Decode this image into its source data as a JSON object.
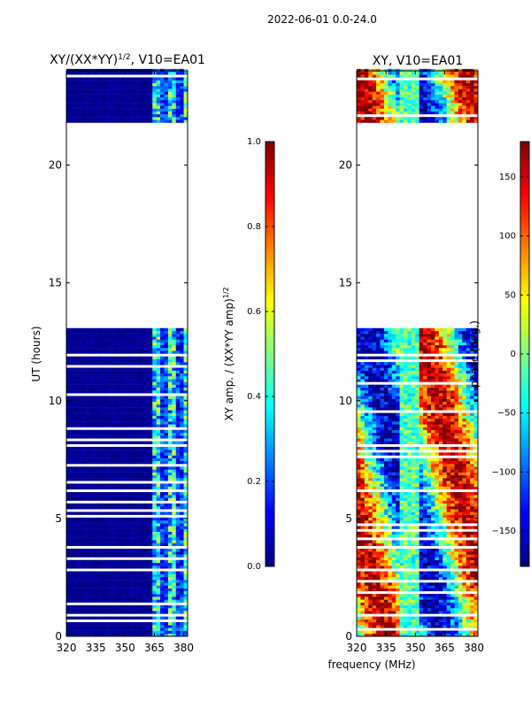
{
  "figure": {
    "suptitle": "2022-06-01 0.0-24.0",
    "xlabel_shared": "frequency (MHz)"
  },
  "chart_data": [
    {
      "type": "heatmap",
      "title_main": "XY/(XX*YY)",
      "title_sup": "1/2",
      "title_tail": ", V10=EA01",
      "xlabel": "frequency (MHz)",
      "ylabel": "UT (hours)",
      "x_ticks": [
        320,
        335,
        350,
        365,
        380
      ],
      "y_ticks": [
        0,
        5,
        10,
        15,
        20
      ],
      "xlim": [
        320,
        382
      ],
      "ylim": [
        0,
        24
      ],
      "data_hours": [
        [
          0,
          13
        ],
        [
          21.8,
          24
        ]
      ],
      "colorbar": {
        "label_main": "XY amp. / (XX*YY amp)",
        "label_sup": "1/2",
        "range": [
          0.0,
          1.0
        ],
        "ticks": [
          0.0,
          0.2,
          0.4,
          0.6,
          0.8,
          1.0
        ],
        "tick_labels": [
          "0.0",
          "0.2",
          "0.4",
          "0.6",
          "0.8",
          "1.0"
        ],
        "colormap": "jet"
      }
    },
    {
      "type": "heatmap",
      "title": "XY, V10=EA01",
      "xlabel": "frequency (MHz)",
      "ylabel": "",
      "x_ticks": [
        320,
        335,
        350,
        365,
        380
      ],
      "y_ticks": [
        0,
        5,
        10,
        15,
        20
      ],
      "xlim": [
        320,
        382
      ],
      "ylim": [
        0,
        24
      ],
      "data_hours": [
        [
          0,
          13
        ],
        [
          21.8,
          24
        ]
      ],
      "colorbar": {
        "label": "phase (deg.)",
        "range": [
          -180,
          180
        ],
        "ticks": [
          -150,
          -100,
          -50,
          0,
          50,
          100,
          150
        ],
        "tick_labels": [
          "−150",
          "−100",
          "−50",
          "0",
          "50",
          "100",
          "150"
        ],
        "colormap": "jet"
      }
    }
  ],
  "colors": {
    "jet": [
      "#00007f",
      "#0000ff",
      "#007fff",
      "#00ffff",
      "#7fff7f",
      "#ffff00",
      "#ff7f00",
      "#ff0000",
      "#7f0000"
    ],
    "background": "#ffffff",
    "axis": "#000000"
  }
}
